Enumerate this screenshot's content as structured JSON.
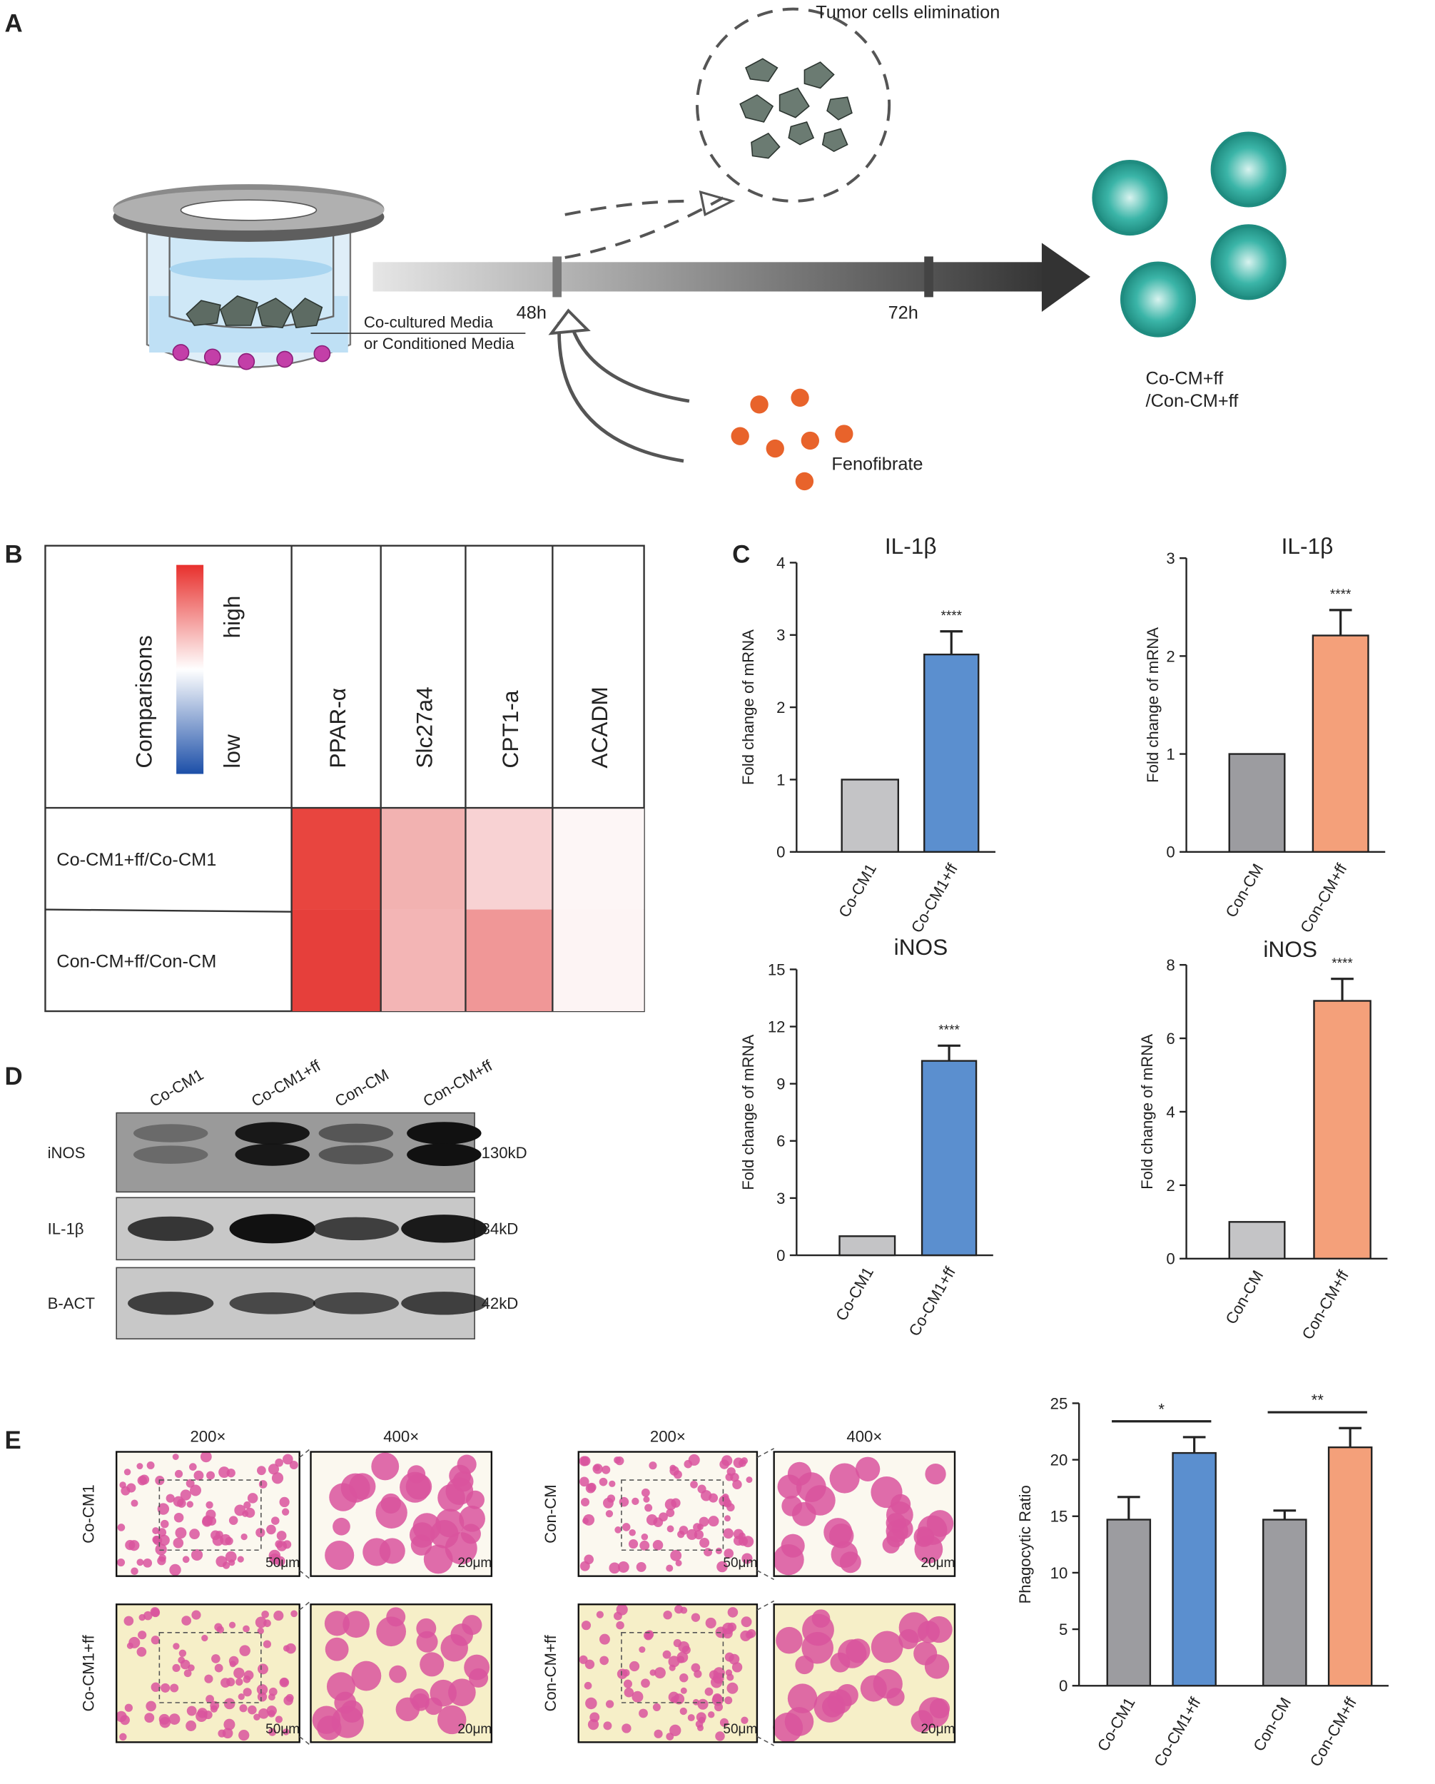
{
  "panel_labels": [
    "A",
    "B",
    "C",
    "D",
    "E"
  ],
  "diagram": {
    "elimination": "Tumor cells elimination",
    "t48": "48h",
    "t72": "72h",
    "media": [
      "Co-cultured Media",
      "or Conditioned Media"
    ],
    "drug": "Fenofibrate",
    "result": [
      "Co-CM+ff",
      "/Con-CM+ff"
    ]
  },
  "heatmap": {
    "header": "Comparisons",
    "scale_high": "high",
    "scale_low": "low",
    "columns": [
      "PPAR-α",
      "Slc27a4",
      "CPT1-a",
      "ACADM"
    ],
    "rows": [
      "Co-CM1+ff/Co-CM1",
      "Con-CM+ff/Con-CM"
    ],
    "cells": [
      [
        "#e8453f",
        "#f2b2b1",
        "#f8d2d3",
        "#fdf6f6"
      ],
      [
        "#e63f3b",
        "#f3b5b5",
        "#f09797",
        "#fdf4f4"
      ]
    ]
  },
  "blot": {
    "lanes": [
      "Co-CM1",
      "Co-CM1+ff",
      "Con-CM",
      "Con-CM+ff"
    ],
    "proteins": [
      "iNOS",
      "IL-1β",
      "B-ACT"
    ],
    "sizes": [
      "130kD",
      "34kD",
      "42kD"
    ]
  },
  "micrographs": {
    "magnifications": [
      "200×",
      "400×"
    ],
    "groups": [
      [
        "Co-CM1",
        "Co-CM1+ff"
      ],
      [
        "Con-CM",
        "Con-CM+ff"
      ]
    ],
    "scale_bars": [
      "50μm",
      "20μm"
    ]
  },
  "chart_data": [
    {
      "type": "bar",
      "title": "IL-1β",
      "y_label": "Fold change of mRNA",
      "categories": [
        "Co-CM1",
        "Co-CM1+ff"
      ],
      "values": [
        1,
        2.73
      ],
      "errors": [
        null,
        0.32
      ],
      "colors": [
        "#c4c4c6",
        "#5b8fcf"
      ],
      "ylim": [
        0,
        4
      ],
      "yticks": [
        0,
        1,
        2,
        3,
        4
      ],
      "annotations": [
        "****"
      ]
    },
    {
      "type": "bar",
      "title": "IL-1β",
      "y_label": "Fold change of mRNA",
      "categories": [
        "Con-CM",
        "Con-CM+ff"
      ],
      "values": [
        1,
        2.21
      ],
      "errors": [
        null,
        0.26
      ],
      "colors": [
        "#9c9ca0",
        "#f4a07a"
      ],
      "ylim": [
        0,
        3
      ],
      "yticks": [
        0,
        1,
        2,
        3
      ],
      "annotations": [
        "****"
      ]
    },
    {
      "type": "bar",
      "title": "iNOS",
      "y_label": "Fold change of mRNA",
      "categories": [
        "Co-CM1",
        "Co-CM1+ff"
      ],
      "values": [
        1,
        10.2
      ],
      "errors": [
        null,
        0.8
      ],
      "colors": [
        "#c4c4c6",
        "#5b8fcf"
      ],
      "ylim": [
        0,
        15
      ],
      "yticks": [
        0,
        3,
        6,
        9,
        12,
        15
      ],
      "annotations": [
        "****"
      ]
    },
    {
      "type": "bar",
      "title": "iNOS",
      "y_label": "Fold change of mRNA",
      "categories": [
        "Con-CM",
        "Con-CM+ff"
      ],
      "values": [
        1,
        7.02
      ],
      "errors": [
        null,
        0.6
      ],
      "colors": [
        "#c4c4c6",
        "#f4a07a"
      ],
      "ylim": [
        0,
        8
      ],
      "yticks": [
        0,
        2,
        4,
        6,
        8
      ],
      "annotations": [
        "****"
      ]
    },
    {
      "type": "bar",
      "y_label": "Phagocytic Ratio",
      "categories": [
        "Co-CM1",
        "Co-CM1+ff",
        "Con-CM",
        "Con-CM+ff"
      ],
      "values": [
        14.7,
        20.6,
        14.7,
        21.1
      ],
      "errors": [
        2.0,
        1.4,
        0.8,
        1.7
      ],
      "colors": [
        "#9c9ca0",
        "#5b8fcf",
        "#9c9ca0",
        "#f4a07a"
      ],
      "ylim": [
        0,
        25
      ],
      "yticks": [
        0,
        5,
        10,
        15,
        20,
        25
      ],
      "annotations": [
        "*",
        "**"
      ]
    }
  ]
}
